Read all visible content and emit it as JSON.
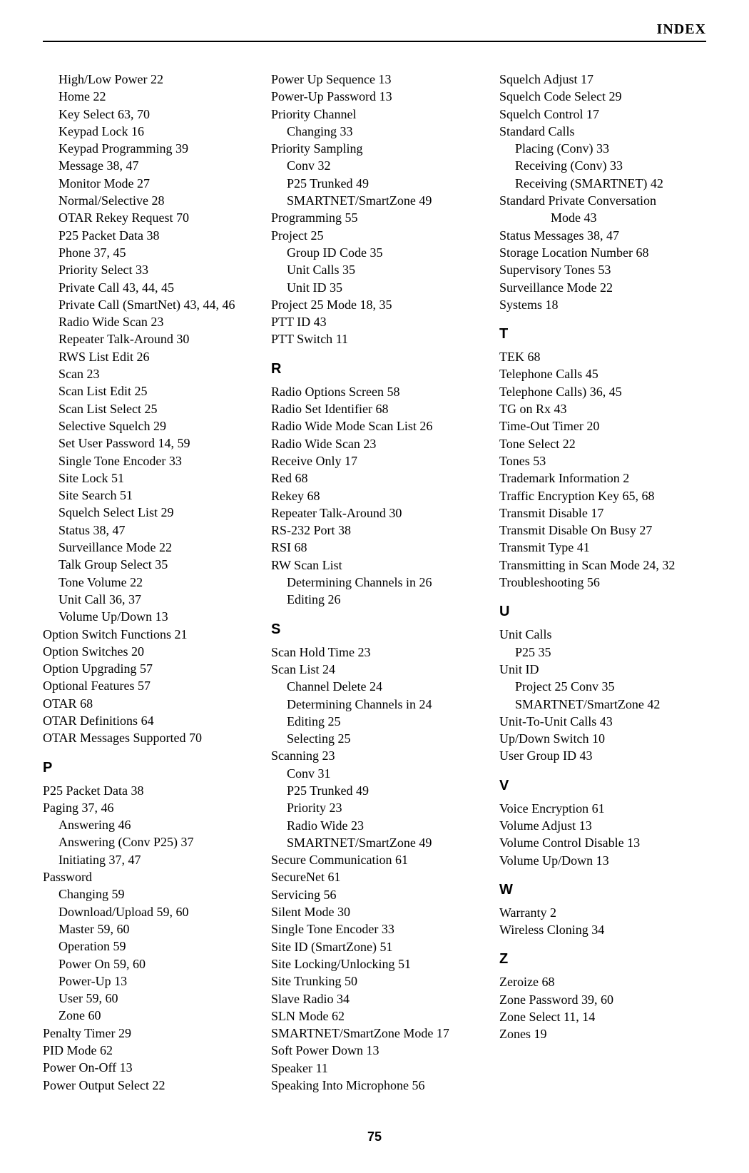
{
  "header": "INDEX",
  "pageNumber": "75",
  "col1": [
    {
      "t": "entry",
      "label": "High/Low Power",
      "pages": "22",
      "indent": 1
    },
    {
      "t": "entry",
      "label": "Home",
      "pages": "22",
      "indent": 1
    },
    {
      "t": "entry",
      "label": "Key Select",
      "pages": "63, 70",
      "indent": 1
    },
    {
      "t": "entry",
      "label": "Keypad Lock",
      "pages": "16",
      "indent": 1
    },
    {
      "t": "entry",
      "label": "Keypad Programming",
      "pages": "39",
      "indent": 1
    },
    {
      "t": "entry",
      "label": "Message",
      "pages": "38, 47",
      "indent": 1
    },
    {
      "t": "entry",
      "label": "Monitor Mode",
      "pages": "27",
      "indent": 1
    },
    {
      "t": "entry",
      "label": "Normal/Selective",
      "pages": "28",
      "indent": 1
    },
    {
      "t": "entry",
      "label": "OTAR Rekey Request",
      "pages": "70",
      "indent": 1
    },
    {
      "t": "entry",
      "label": "P25 Packet Data",
      "pages": "38",
      "indent": 1
    },
    {
      "t": "entry",
      "label": "Phone",
      "pages": "37, 45",
      "indent": 1
    },
    {
      "t": "entry",
      "label": "Priority Select",
      "pages": "33",
      "indent": 1
    },
    {
      "t": "entry",
      "label": "Private Call",
      "pages": "43, 44, 45",
      "indent": 1
    },
    {
      "t": "entry",
      "label": "Private Call (SmartNet)",
      "pages": "43, 44, 46",
      "indent": 1
    },
    {
      "t": "entry",
      "label": "Radio Wide Scan",
      "pages": "23",
      "indent": 1
    },
    {
      "t": "entry",
      "label": "Repeater Talk-Around",
      "pages": "30",
      "indent": 1
    },
    {
      "t": "entry",
      "label": "RWS List Edit",
      "pages": "26",
      "indent": 1
    },
    {
      "t": "entry",
      "label": "Scan",
      "pages": "23",
      "indent": 1
    },
    {
      "t": "entry",
      "label": "Scan List Edit",
      "pages": "25",
      "indent": 1
    },
    {
      "t": "entry",
      "label": "Scan List Select",
      "pages": "25",
      "indent": 1
    },
    {
      "t": "entry",
      "label": "Selective Squelch",
      "pages": "29",
      "indent": 1
    },
    {
      "t": "entry",
      "label": "Set User Password",
      "pages": "14, 59",
      "indent": 1
    },
    {
      "t": "entry",
      "label": "Single Tone Encoder",
      "pages": "33",
      "indent": 1
    },
    {
      "t": "entry",
      "label": "Site Lock",
      "pages": "51",
      "indent": 1
    },
    {
      "t": "entry",
      "label": "Site Search",
      "pages": "51",
      "indent": 1
    },
    {
      "t": "entry",
      "label": "Squelch Select List",
      "pages": "29",
      "indent": 1
    },
    {
      "t": "entry",
      "label": "Status",
      "pages": "38, 47",
      "indent": 1
    },
    {
      "t": "entry",
      "label": "Surveillance Mode",
      "pages": "22",
      "indent": 1
    },
    {
      "t": "entry",
      "label": "Talk Group Select",
      "pages": "35",
      "indent": 1
    },
    {
      "t": "entry",
      "label": "Tone Volume",
      "pages": "22",
      "indent": 1
    },
    {
      "t": "entry",
      "label": "Unit Call",
      "pages": "36, 37",
      "indent": 1
    },
    {
      "t": "entry",
      "label": "Volume Up/Down",
      "pages": "13",
      "indent": 1
    },
    {
      "t": "entry",
      "label": "Option Switch Functions",
      "pages": "21",
      "indent": 0
    },
    {
      "t": "entry",
      "label": "Option Switches",
      "pages": "20",
      "indent": 0
    },
    {
      "t": "entry",
      "label": "Option Upgrading",
      "pages": "57",
      "indent": 0
    },
    {
      "t": "entry",
      "label": "Optional Features",
      "pages": "57",
      "indent": 0
    },
    {
      "t": "entry",
      "label": "OTAR",
      "pages": "68",
      "indent": 0
    },
    {
      "t": "entry",
      "label": "OTAR Definitions",
      "pages": "64",
      "indent": 0
    },
    {
      "t": "entry",
      "label": "OTAR Messages Supported",
      "pages": "70",
      "indent": 0
    },
    {
      "t": "head",
      "label": "P"
    },
    {
      "t": "entry",
      "label": "P25 Packet Data",
      "pages": "38",
      "indent": 0
    },
    {
      "t": "entry",
      "label": "Paging",
      "pages": "37, 46",
      "indent": 0
    },
    {
      "t": "entry",
      "label": "Answering",
      "pages": "46",
      "indent": 1
    },
    {
      "t": "entry",
      "label": "Answering (Conv P25)",
      "pages": "37",
      "indent": 1
    },
    {
      "t": "entry",
      "label": "Initiating",
      "pages": "37, 47",
      "indent": 1
    },
    {
      "t": "entry",
      "label": "Password",
      "pages": "",
      "indent": 0
    },
    {
      "t": "entry",
      "label": "Changing",
      "pages": "59",
      "indent": 1
    },
    {
      "t": "entry",
      "label": "Download/Upload",
      "pages": "59, 60",
      "indent": 1
    },
    {
      "t": "entry",
      "label": "Master",
      "pages": "59, 60",
      "indent": 1
    },
    {
      "t": "entry",
      "label": "Operation",
      "pages": "59",
      "indent": 1
    },
    {
      "t": "entry",
      "label": "Power On",
      "pages": "59, 60",
      "indent": 1
    },
    {
      "t": "entry",
      "label": "Power-Up",
      "pages": "13",
      "indent": 1
    },
    {
      "t": "entry",
      "label": "User",
      "pages": "59, 60",
      "indent": 1
    },
    {
      "t": "entry",
      "label": "Zone",
      "pages": "60",
      "indent": 1
    },
    {
      "t": "entry",
      "label": "Penalty Timer",
      "pages": "29",
      "indent": 0
    },
    {
      "t": "entry",
      "label": "PID Mode",
      "pages": "62",
      "indent": 0
    },
    {
      "t": "entry",
      "label": "Power On-Off",
      "pages": "13",
      "indent": 0
    },
    {
      "t": "entry",
      "label": "Power Output Select",
      "pages": "22",
      "indent": 0
    }
  ],
  "col2": [
    {
      "t": "entry",
      "label": "Power Up Sequence",
      "pages": "13",
      "indent": 0
    },
    {
      "t": "entry",
      "label": "Power-Up Password",
      "pages": "13",
      "indent": 0
    },
    {
      "t": "entry",
      "label": "Priority Channel",
      "pages": "",
      "indent": 0
    },
    {
      "t": "entry",
      "label": "Changing",
      "pages": "33",
      "indent": 1
    },
    {
      "t": "entry",
      "label": "Priority Sampling",
      "pages": "",
      "indent": 0
    },
    {
      "t": "entry",
      "label": "Conv",
      "pages": "32",
      "indent": 1
    },
    {
      "t": "entry",
      "label": "P25 Trunked",
      "pages": "49",
      "indent": 1
    },
    {
      "t": "entry",
      "label": "SMARTNET/SmartZone",
      "pages": "49",
      "indent": 1
    },
    {
      "t": "entry",
      "label": "Programming",
      "pages": "55",
      "indent": 0
    },
    {
      "t": "entry",
      "label": "Project 25",
      "pages": "",
      "indent": 0
    },
    {
      "t": "entry",
      "label": "Group ID Code",
      "pages": "35",
      "indent": 1
    },
    {
      "t": "entry",
      "label": "Unit Calls",
      "pages": "35",
      "indent": 1
    },
    {
      "t": "entry",
      "label": "Unit ID",
      "pages": "35",
      "indent": 1
    },
    {
      "t": "entry",
      "label": "Project 25 Mode",
      "pages": "18, 35",
      "indent": 0
    },
    {
      "t": "entry",
      "label": "PTT ID",
      "pages": "43",
      "indent": 0
    },
    {
      "t": "entry",
      "label": "PTT Switch",
      "pages": "11",
      "indent": 0
    },
    {
      "t": "head",
      "label": "R"
    },
    {
      "t": "entry",
      "label": "Radio Options Screen",
      "pages": "58",
      "indent": 0
    },
    {
      "t": "entry",
      "label": "Radio Set Identifier",
      "pages": "68",
      "indent": 0
    },
    {
      "t": "entry",
      "label": "Radio Wide Mode Scan List",
      "pages": "26",
      "indent": 0
    },
    {
      "t": "entry",
      "label": "Radio Wide Scan",
      "pages": "23",
      "indent": 0
    },
    {
      "t": "entry",
      "label": "Receive Only",
      "pages": "17",
      "indent": 0
    },
    {
      "t": "entry",
      "label": "Red",
      "pages": "68",
      "indent": 0
    },
    {
      "t": "entry",
      "label": "Rekey",
      "pages": "68",
      "indent": 0
    },
    {
      "t": "entry",
      "label": "Repeater Talk-Around",
      "pages": "30",
      "indent": 0
    },
    {
      "t": "entry",
      "label": "RS-232 Port",
      "pages": "38",
      "indent": 0
    },
    {
      "t": "entry",
      "label": "RSI",
      "pages": "68",
      "indent": 0
    },
    {
      "t": "entry",
      "label": "RW Scan List",
      "pages": "",
      "indent": 0
    },
    {
      "t": "entry",
      "label": "Determining Channels in",
      "pages": "26",
      "indent": 1
    },
    {
      "t": "entry",
      "label": "Editing",
      "pages": "26",
      "indent": 1
    },
    {
      "t": "head",
      "label": "S"
    },
    {
      "t": "entry",
      "label": "Scan Hold Time",
      "pages": "23",
      "indent": 0
    },
    {
      "t": "entry",
      "label": "Scan List",
      "pages": "24",
      "indent": 0
    },
    {
      "t": "entry",
      "label": "Channel Delete",
      "pages": "24",
      "indent": 1
    },
    {
      "t": "entry",
      "label": "Determining Channels in",
      "pages": "24",
      "indent": 1
    },
    {
      "t": "entry",
      "label": "Editing",
      "pages": "25",
      "indent": 1
    },
    {
      "t": "entry",
      "label": "Selecting",
      "pages": "25",
      "indent": 1
    },
    {
      "t": "entry",
      "label": "Scanning",
      "pages": "23",
      "indent": 0
    },
    {
      "t": "entry",
      "label": "Conv",
      "pages": "31",
      "indent": 1
    },
    {
      "t": "entry",
      "label": "P25 Trunked",
      "pages": "49",
      "indent": 1
    },
    {
      "t": "entry",
      "label": "Priority",
      "pages": "23",
      "indent": 1
    },
    {
      "t": "entry",
      "label": "Radio Wide",
      "pages": "23",
      "indent": 1
    },
    {
      "t": "entry",
      "label": "SMARTNET/SmartZone",
      "pages": "49",
      "indent": 1
    },
    {
      "t": "entry",
      "label": "Secure Communication",
      "pages": "61",
      "indent": 0
    },
    {
      "t": "entry",
      "label": "SecureNet",
      "pages": "61",
      "indent": 0
    },
    {
      "t": "entry",
      "label": "Servicing",
      "pages": "56",
      "indent": 0
    },
    {
      "t": "entry",
      "label": "Silent Mode",
      "pages": "30",
      "indent": 0
    },
    {
      "t": "entry",
      "label": "Single Tone Encoder",
      "pages": "33",
      "indent": 0
    },
    {
      "t": "entry",
      "label": "Site ID (SmartZone)",
      "pages": "51",
      "indent": 0
    },
    {
      "t": "entry",
      "label": "Site Locking/Unlocking",
      "pages": "51",
      "indent": 0
    },
    {
      "t": "entry",
      "label": "Site Trunking",
      "pages": "50",
      "indent": 0
    },
    {
      "t": "entry",
      "label": "Slave Radio",
      "pages": "34",
      "indent": 0
    },
    {
      "t": "entry",
      "label": "SLN Mode",
      "pages": "62",
      "indent": 0
    },
    {
      "t": "entry",
      "label": "SMARTNET/SmartZone Mode",
      "pages": "17",
      "indent": 0
    },
    {
      "t": "entry",
      "label": "Soft Power Down",
      "pages": "13",
      "indent": 0
    },
    {
      "t": "entry",
      "label": "Speaker",
      "pages": "11",
      "indent": 0
    },
    {
      "t": "entry",
      "label": "Speaking Into Microphone",
      "pages": "56",
      "indent": 0
    }
  ],
  "col3": [
    {
      "t": "entry",
      "label": "Squelch Adjust",
      "pages": "17",
      "indent": 0
    },
    {
      "t": "entry",
      "label": "Squelch Code Select",
      "pages": "29",
      "indent": 0
    },
    {
      "t": "entry",
      "label": "Squelch Control",
      "pages": "17",
      "indent": 0
    },
    {
      "t": "entry",
      "label": "Standard Calls",
      "pages": "",
      "indent": 0
    },
    {
      "t": "entry",
      "label": "Placing (Conv)",
      "pages": "33",
      "indent": 1
    },
    {
      "t": "entry",
      "label": "Receiving (Conv)",
      "pages": "33",
      "indent": 1
    },
    {
      "t": "entry",
      "label": "Receiving (SMARTNET)",
      "pages": "42",
      "indent": 1
    },
    {
      "t": "entry",
      "label": "Standard Private Conversation",
      "pages": "",
      "indent": 0
    },
    {
      "t": "entry",
      "label": "Mode",
      "pages": "43",
      "indent": 2
    },
    {
      "t": "entry",
      "label": "Status Messages",
      "pages": "38, 47",
      "indent": 0
    },
    {
      "t": "entry",
      "label": "Storage Location Number",
      "pages": "68",
      "indent": 0
    },
    {
      "t": "entry",
      "label": "Supervisory Tones",
      "pages": "53",
      "indent": 0
    },
    {
      "t": "entry",
      "label": "Surveillance Mode",
      "pages": "22",
      "indent": 0
    },
    {
      "t": "entry",
      "label": "Systems",
      "pages": "18",
      "indent": 0
    },
    {
      "t": "head",
      "label": "T"
    },
    {
      "t": "entry",
      "label": "TEK",
      "pages": "68",
      "indent": 0
    },
    {
      "t": "entry",
      "label": "Telephone Calls",
      "pages": "45",
      "indent": 0
    },
    {
      "t": "entry",
      "label": "Telephone Calls)",
      "pages": "36, 45",
      "indent": 0
    },
    {
      "t": "entry",
      "label": "TG on Rx",
      "pages": "43",
      "indent": 0
    },
    {
      "t": "entry",
      "label": "Time-Out Timer",
      "pages": "20",
      "indent": 0
    },
    {
      "t": "entry",
      "label": "Tone Select",
      "pages": "22",
      "indent": 0
    },
    {
      "t": "entry",
      "label": "Tones",
      "pages": "53",
      "indent": 0
    },
    {
      "t": "entry",
      "label": "Trademark Information",
      "pages": "2",
      "indent": 0
    },
    {
      "t": "entry",
      "label": "Traffic Encryption Key",
      "pages": "65, 68",
      "indent": 0
    },
    {
      "t": "entry",
      "label": "Transmit Disable",
      "pages": "17",
      "indent": 0
    },
    {
      "t": "entry",
      "label": "Transmit Disable On Busy",
      "pages": "27",
      "indent": 0
    },
    {
      "t": "entry",
      "label": "Transmit Type",
      "pages": "41",
      "indent": 0
    },
    {
      "t": "entry",
      "label": "Transmitting in Scan Mode",
      "pages": "24, 32",
      "indent": 0
    },
    {
      "t": "entry",
      "label": "Troubleshooting",
      "pages": "56",
      "indent": 0
    },
    {
      "t": "head",
      "label": "U"
    },
    {
      "t": "entry",
      "label": "Unit Calls",
      "pages": "",
      "indent": 0
    },
    {
      "t": "entry",
      "label": "P25",
      "pages": "35",
      "indent": 1
    },
    {
      "t": "entry",
      "label": "Unit ID",
      "pages": "",
      "indent": 0
    },
    {
      "t": "entry",
      "label": "Project 25 Conv",
      "pages": "35",
      "indent": 1
    },
    {
      "t": "entry",
      "label": "SMARTNET/SmartZone",
      "pages": "42",
      "indent": 1
    },
    {
      "t": "entry",
      "label": "Unit-To-Unit Calls",
      "pages": "43",
      "indent": 0
    },
    {
      "t": "entry",
      "label": "Up/Down Switch",
      "pages": "10",
      "indent": 0
    },
    {
      "t": "entry",
      "label": "User Group ID",
      "pages": "43",
      "indent": 0
    },
    {
      "t": "head",
      "label": "V"
    },
    {
      "t": "entry",
      "label": "Voice Encryption",
      "pages": "61",
      "indent": 0
    },
    {
      "t": "entry",
      "label": "Volume Adjust",
      "pages": "13",
      "indent": 0
    },
    {
      "t": "entry",
      "label": "Volume Control Disable",
      "pages": "13",
      "indent": 0
    },
    {
      "t": "entry",
      "label": "Volume Up/Down",
      "pages": "13",
      "indent": 0
    },
    {
      "t": "head",
      "label": "W"
    },
    {
      "t": "entry",
      "label": "Warranty",
      "pages": "2",
      "indent": 0
    },
    {
      "t": "entry",
      "label": "Wireless Cloning",
      "pages": "34",
      "indent": 0
    },
    {
      "t": "head",
      "label": "Z"
    },
    {
      "t": "entry",
      "label": "Zeroize",
      "pages": "68",
      "indent": 0
    },
    {
      "t": "entry",
      "label": "Zone Password",
      "pages": "39, 60",
      "indent": 0
    },
    {
      "t": "entry",
      "label": "Zone Select",
      "pages": "11, 14",
      "indent": 0
    },
    {
      "t": "entry",
      "label": "Zones",
      "pages": "19",
      "indent": 0
    }
  ]
}
